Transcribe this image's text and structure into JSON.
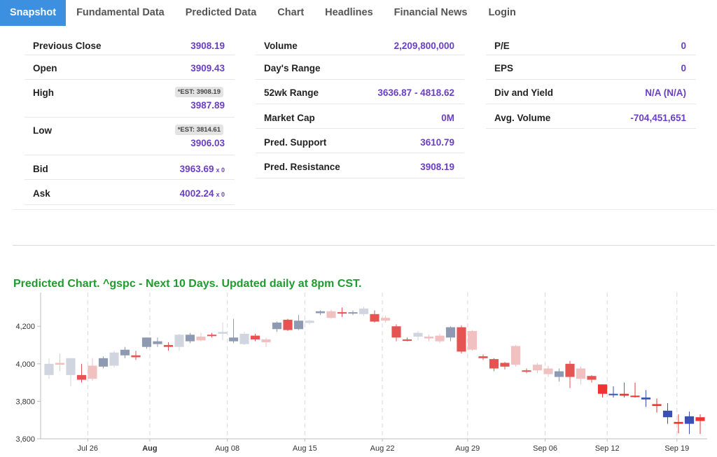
{
  "nav": {
    "tabs": [
      {
        "label": "Snapshot",
        "active": true
      },
      {
        "label": "Fundamental Data",
        "active": false
      },
      {
        "label": "Predicted Data",
        "active": false
      },
      {
        "label": "Chart",
        "active": false
      },
      {
        "label": "Headlines",
        "active": false
      },
      {
        "label": "Financial News",
        "active": false
      },
      {
        "label": "Login",
        "active": false
      }
    ]
  },
  "stats": {
    "col1": [
      {
        "label": "Previous Close",
        "value": "3908.19"
      },
      {
        "label": "Open",
        "value": "3909.43"
      },
      {
        "label": "High",
        "value": "3987.89",
        "est": "*EST: 3908.19"
      },
      {
        "label": "Low",
        "value": "3906.03",
        "est": "*EST: 3814.61"
      },
      {
        "label": "Bid",
        "value": "3963.69",
        "suffix": "x 0"
      },
      {
        "label": "Ask",
        "value": "4002.24",
        "suffix": "x 0"
      }
    ],
    "col2": [
      {
        "label": "Volume",
        "value": "2,209,800,000"
      },
      {
        "label": "Day's Range",
        "value": ""
      },
      {
        "label": "52wk Range",
        "value": "3636.87 - 4818.62"
      },
      {
        "label": "Market Cap",
        "value": "0M"
      },
      {
        "label": "Pred. Support",
        "value": "3610.79"
      },
      {
        "label": "Pred. Resistance",
        "value": "3908.19"
      }
    ],
    "col3": [
      {
        "label": "P/E",
        "value": "0"
      },
      {
        "label": "EPS",
        "value": "0"
      },
      {
        "label": "Div and Yield",
        "value": "N/A (N/A)"
      },
      {
        "label": "Avg. Volume",
        "value": "-704,451,651"
      }
    ]
  },
  "chart_title": "Predicted Chart. ^gspc - Next 10 Days. Updated daily at 8pm CST.",
  "chart_data": {
    "type": "candlestick",
    "title": "Predicted Chart. ^gspc - Next 10 Days. Updated daily at 8pm CST.",
    "xlabel": "",
    "ylabel": "",
    "ylim": [
      3600,
      4380
    ],
    "yticks": [
      3600,
      3800,
      4000,
      4200
    ],
    "ytick_labels": [
      "3,600",
      "3,800",
      "4,000",
      "4,200"
    ],
    "xticks": [
      {
        "index": 2.5,
        "label": "Jul 26",
        "bold": false
      },
      {
        "index": 6.5,
        "label": "Aug",
        "bold": true
      },
      {
        "index": 11.5,
        "label": "Aug 08",
        "bold": false
      },
      {
        "index": 16.5,
        "label": "Aug 15",
        "bold": false
      },
      {
        "index": 21.5,
        "label": "Aug 22",
        "bold": false
      },
      {
        "index": 27.0,
        "label": "Aug 29",
        "bold": false
      },
      {
        "index": 32.0,
        "label": "Sep 06",
        "bold": false
      },
      {
        "index": 36.0,
        "label": "Sep 12",
        "bold": false
      },
      {
        "index": 40.5,
        "label": "Sep 19",
        "bold": false
      }
    ],
    "grid_lines_at": [
      2.5,
      6.5,
      11.5,
      16.5,
      21.5,
      27.0,
      32.0,
      36.0,
      40.5
    ],
    "color_legend": {
      "up_grey": "#8e9ab2",
      "down_red": "#e55353",
      "up_light": "#d0d5df",
      "down_light": "#f1c1c1",
      "up_blue": "#3a4fb8",
      "down_bright": "#ee3333"
    },
    "candles": [
      {
        "open": 3940,
        "close": 4000,
        "high": 4030,
        "low": 3920,
        "color": "up_light"
      },
      {
        "open": 4005,
        "close": 3995,
        "high": 4055,
        "low": 3960,
        "color": "down_light"
      },
      {
        "open": 3940,
        "close": 4030,
        "high": 4030,
        "low": 3880,
        "color": "up_light"
      },
      {
        "open": 3940,
        "close": 3915,
        "high": 4000,
        "low": 3900,
        "color": "down_red"
      },
      {
        "open": 3920,
        "close": 3990,
        "high": 4030,
        "low": 3910,
        "color": "down_light"
      },
      {
        "open": 3985,
        "close": 4030,
        "high": 4040,
        "low": 3975,
        "color": "up_grey"
      },
      {
        "open": 3990,
        "close": 4060,
        "high": 4070,
        "low": 3980,
        "color": "up_light"
      },
      {
        "open": 4045,
        "close": 4075,
        "high": 4090,
        "low": 4030,
        "color": "up_grey"
      },
      {
        "open": 4045,
        "close": 4035,
        "high": 4070,
        "low": 4020,
        "color": "down_red"
      },
      {
        "open": 4090,
        "close": 4140,
        "high": 4140,
        "low": 4080,
        "color": "up_grey"
      },
      {
        "open": 4105,
        "close": 4120,
        "high": 4140,
        "low": 4090,
        "color": "up_grey"
      },
      {
        "open": 4100,
        "close": 4090,
        "high": 4115,
        "low": 4070,
        "color": "down_red"
      },
      {
        "open": 4090,
        "close": 4155,
        "high": 4160,
        "low": 4070,
        "color": "up_light"
      },
      {
        "open": 4120,
        "close": 4155,
        "high": 4165,
        "low": 4110,
        "color": "up_grey"
      },
      {
        "open": 4125,
        "close": 4145,
        "high": 4165,
        "low": 4120,
        "color": "down_light"
      },
      {
        "open": 4155,
        "close": 4148,
        "high": 4165,
        "low": 4140,
        "color": "down_red"
      },
      {
        "open": 4160,
        "close": 4170,
        "high": 4220,
        "low": 4125,
        "color": "up_light"
      },
      {
        "open": 4140,
        "close": 4120,
        "high": 4240,
        "low": 4110,
        "color": "up_grey"
      },
      {
        "open": 4105,
        "close": 4160,
        "high": 4170,
        "low": 4100,
        "color": "up_light"
      },
      {
        "open": 4150,
        "close": 4130,
        "high": 4160,
        "low": 4120,
        "color": "down_red"
      },
      {
        "open": 4130,
        "close": 4115,
        "high": 4140,
        "low": 4090,
        "color": "down_light"
      },
      {
        "open": 4185,
        "close": 4220,
        "high": 4225,
        "low": 4170,
        "color": "up_grey"
      },
      {
        "open": 4180,
        "close": 4235,
        "high": 4240,
        "low": 4175,
        "color": "down_red"
      },
      {
        "open": 4185,
        "close": 4230,
        "high": 4260,
        "low": 4180,
        "color": "up_grey"
      },
      {
        "open": 4230,
        "close": 4218,
        "high": 4235,
        "low": 4210,
        "color": "up_light"
      },
      {
        "open": 4270,
        "close": 4280,
        "high": 4285,
        "low": 4260,
        "color": "up_grey"
      },
      {
        "open": 4280,
        "close": 4245,
        "high": 4290,
        "low": 4240,
        "color": "down_light"
      },
      {
        "open": 4275,
        "close": 4275,
        "high": 4300,
        "low": 4250,
        "color": "down_red"
      },
      {
        "open": 4270,
        "close": 4275,
        "high": 4285,
        "low": 4260,
        "color": "up_grey"
      },
      {
        "open": 4265,
        "close": 4295,
        "high": 4305,
        "low": 4255,
        "color": "up_light"
      },
      {
        "open": 4265,
        "close": 4225,
        "high": 4285,
        "low": 4220,
        "color": "down_red"
      },
      {
        "open": 4245,
        "close": 4230,
        "high": 4255,
        "low": 4220,
        "color": "down_light"
      },
      {
        "open": 4200,
        "close": 4140,
        "high": 4210,
        "low": 4120,
        "color": "down_red"
      },
      {
        "open": 4130,
        "close": 4128,
        "high": 4140,
        "low": 4120,
        "color": "down_red"
      },
      {
        "open": 4145,
        "close": 4165,
        "high": 4175,
        "low": 4125,
        "color": "up_light"
      },
      {
        "open": 4145,
        "close": 4135,
        "high": 4155,
        "low": 4120,
        "color": "down_light"
      },
      {
        "open": 4120,
        "close": 4150,
        "high": 4160,
        "low": 4110,
        "color": "down_light"
      },
      {
        "open": 4140,
        "close": 4195,
        "high": 4200,
        "low": 4120,
        "color": "up_grey"
      },
      {
        "open": 4195,
        "close": 4065,
        "high": 4205,
        "low": 4055,
        "color": "down_red"
      },
      {
        "open": 4175,
        "close": 4075,
        "high": 4180,
        "low": 4070,
        "color": "down_light"
      },
      {
        "open": 4040,
        "close": 4030,
        "high": 4050,
        "low": 4020,
        "color": "down_red"
      },
      {
        "open": 4025,
        "close": 3975,
        "high": 4030,
        "low": 3960,
        "color": "down_red"
      },
      {
        "open": 4005,
        "close": 3985,
        "high": 4010,
        "low": 3970,
        "color": "down_red"
      },
      {
        "open": 4095,
        "close": 3995,
        "high": 4100,
        "low": 3985,
        "color": "down_light"
      },
      {
        "open": 3965,
        "close": 3960,
        "high": 3975,
        "low": 3950,
        "color": "down_red"
      },
      {
        "open": 3995,
        "close": 3965,
        "high": 4005,
        "low": 3950,
        "color": "down_light"
      },
      {
        "open": 3975,
        "close": 3945,
        "high": 3990,
        "low": 3930,
        "color": "down_light"
      },
      {
        "open": 3960,
        "close": 3930,
        "high": 3975,
        "low": 3905,
        "color": "up_grey"
      },
      {
        "open": 4000,
        "close": 3930,
        "high": 4015,
        "low": 3870,
        "color": "down_red"
      },
      {
        "open": 3975,
        "close": 3920,
        "high": 3985,
        "low": 3890,
        "color": "down_light"
      },
      {
        "open": 3935,
        "close": 3915,
        "high": 3940,
        "low": 3900,
        "color": "down_red"
      },
      {
        "open": 3890,
        "close": 3840,
        "high": 3890,
        "low": 3820,
        "color": "down_bright"
      },
      {
        "open": 3840,
        "close": 3835,
        "high": 3880,
        "low": 3820,
        "color": "up_blue"
      },
      {
        "open": 3840,
        "close": 3830,
        "high": 3900,
        "low": 3820,
        "color": "down_bright"
      },
      {
        "open": 3830,
        "close": 3825,
        "high": 3900,
        "low": 3820,
        "color": "down_bright"
      },
      {
        "open": 3820,
        "close": 3810,
        "high": 3860,
        "low": 3770,
        "color": "up_blue"
      },
      {
        "open": 3785,
        "close": 3775,
        "high": 3815,
        "low": 3740,
        "color": "down_bright"
      },
      {
        "open": 3750,
        "close": 3715,
        "high": 3790,
        "low": 3680,
        "color": "up_blue"
      },
      {
        "open": 3690,
        "close": 3680,
        "high": 3730,
        "low": 3630,
        "color": "down_bright"
      },
      {
        "open": 3720,
        "close": 3680,
        "high": 3745,
        "low": 3625,
        "color": "up_blue"
      },
      {
        "open": 3715,
        "close": 3695,
        "high": 3730,
        "low": 3625,
        "color": "down_bright"
      }
    ]
  }
}
